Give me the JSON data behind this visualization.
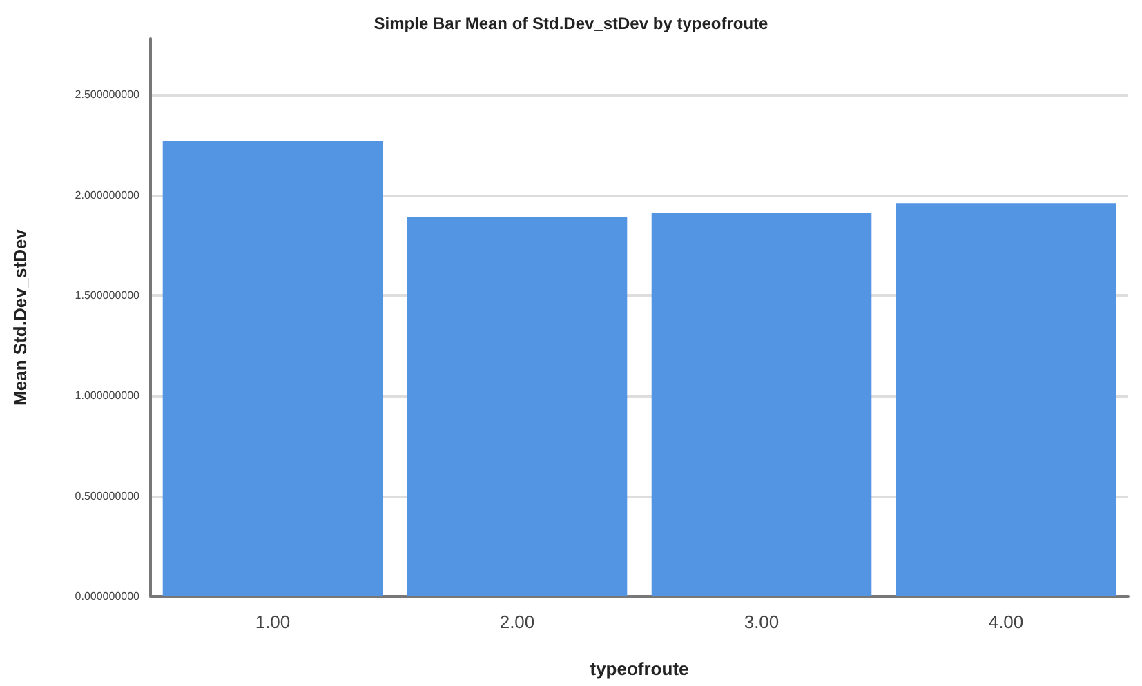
{
  "chart_data": {
    "type": "bar",
    "title": "Simple Bar Mean of Std.Dev_stDev by typeofroute",
    "xlabel": "typeofroute",
    "ylabel": "Mean Std.Dev_stDev",
    "categories": [
      "1.00",
      "2.00",
      "3.00",
      "4.00"
    ],
    "values": [
      2.27,
      1.89,
      1.91,
      1.96
    ],
    "color": "#5495e3",
    "ylim": [
      0,
      2.78
    ],
    "yticks": [
      {
        "value": 0,
        "label": "0.000000000"
      },
      {
        "value": 0.5,
        "label": "0.500000000"
      },
      {
        "value": 1,
        "label": "1.000000000"
      },
      {
        "value": 1.5,
        "label": "1.500000000"
      },
      {
        "value": 2,
        "label": "2.000000000"
      },
      {
        "value": 2.5,
        "label": "2.500000000"
      }
    ],
    "grid": "y"
  }
}
